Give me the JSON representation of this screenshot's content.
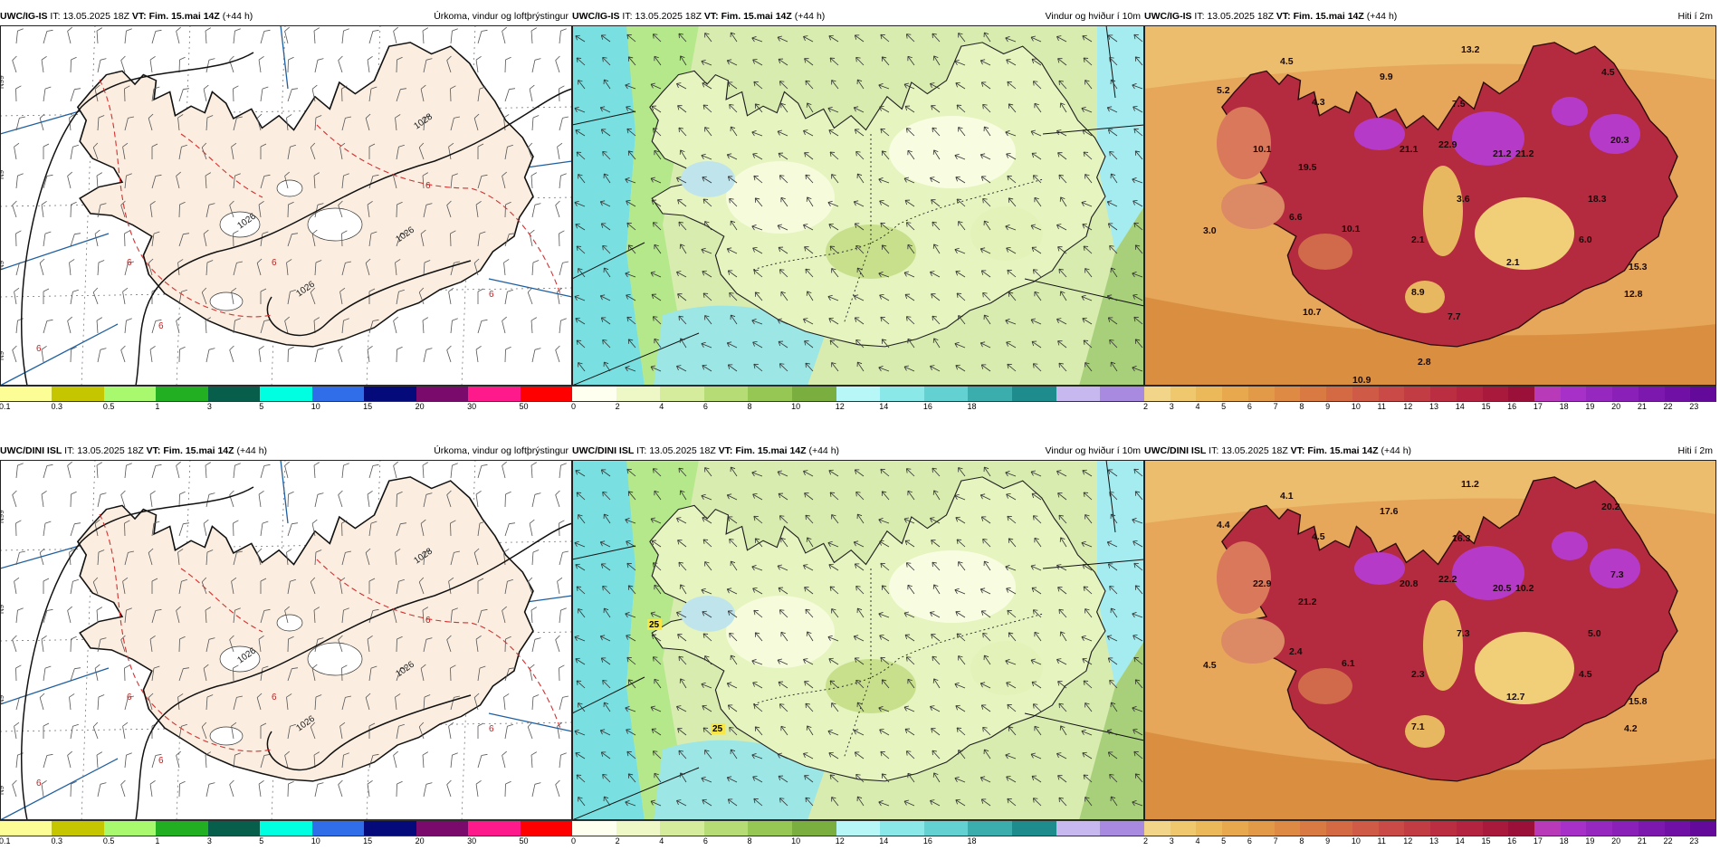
{
  "panels": [
    {
      "id": "p1",
      "model": "UWC/IG-IS",
      "it_label": "IT:",
      "it": "13.05.2025 18Z",
      "vt_label": "VT:",
      "vt": "Fim. 15.mai 14Z",
      "lead": "(+44 h)",
      "title": "Úrkoma, vindur og loftþrýstingur"
    },
    {
      "id": "p2",
      "model": "UWC/IG-IS",
      "it_label": "IT:",
      "it": "13.05.2025 18Z",
      "vt_label": "VT:",
      "vt": "Fim. 15.mai 14Z",
      "lead": "(+44 h)",
      "title": "Vindur og hviður í 10m"
    },
    {
      "id": "p3",
      "model": "UWC/IG-IS",
      "it_label": "IT:",
      "it": "13.05.2025 18Z",
      "vt_label": "VT:",
      "vt": "Fim. 15.mai 14Z",
      "lead": "(+44 h)",
      "title": "Hiti í 2m"
    },
    {
      "id": "p4",
      "model": "UWC/DINI ISL",
      "it_label": "IT:",
      "it": "13.05.2025 18Z",
      "vt_label": "VT:",
      "vt": "Fim. 15.mai 14Z",
      "lead": "(+44 h)",
      "title": "Úrkoma, vindur og loftþrýstingur"
    },
    {
      "id": "p5",
      "model": "UWC/DINI ISL",
      "it_label": "IT:",
      "it": "13.05.2025 18Z",
      "vt_label": "VT:",
      "vt": "Fim. 15.mai 14Z",
      "lead": "(+44 h)",
      "title": "Vindur og hviður í 10m"
    },
    {
      "id": "p6",
      "model": "UWC/DINI ISL",
      "it_label": "IT:",
      "it": "13.05.2025 18Z",
      "vt_label": "VT:",
      "vt": "Fim. 15.mai 14Z",
      "lead": "(+44 h)",
      "title": "Hiti í 2m"
    }
  ],
  "precip_scale": {
    "colors": [
      "#fdfd96",
      "#c6c600",
      "#a9f96f",
      "#22b022",
      "#075e4a",
      "#00ffe0",
      "#2f6ee8",
      "#040a7a",
      "#7a0a6b",
      "#ff1a8c",
      "#ff0000"
    ],
    "ticks": [
      "0.1",
      "0.3",
      "0.5",
      "1",
      "3",
      "5",
      "10",
      "15",
      "20",
      "30",
      "50"
    ]
  },
  "wind_scale": {
    "colors": [
      "#fffff0",
      "#eef7c6",
      "#d4ec9b",
      "#b6dc75",
      "#96c654",
      "#7aaf3f",
      "#b8f7f7",
      "#8ae8e8",
      "#63d1d1",
      "#3cadad",
      "#1e8c8c",
      "#c8b8f0",
      "#a88ae0"
    ],
    "ticks": [
      "0",
      "2",
      "4",
      "6",
      "8",
      "10",
      "12",
      "14",
      "16",
      "18"
    ]
  },
  "temp_scale": {
    "colors": [
      "#f3d58a",
      "#efc76c",
      "#ecb95a",
      "#e8a94e",
      "#e39a48",
      "#de8a44",
      "#d97a42",
      "#d46a44",
      "#cf5a46",
      "#c94a46",
      "#c23c44",
      "#bb2e42",
      "#b42440",
      "#a8193c",
      "#9a1038",
      "#b83ab8",
      "#a630c8",
      "#9628c0",
      "#8a20b8",
      "#7d18ae",
      "#7010a4",
      "#640a9a"
    ],
    "ticks": [
      "2",
      "3",
      "4",
      "5",
      "6",
      "7",
      "8",
      "9",
      "10",
      "11",
      "12",
      "13",
      "14",
      "15",
      "16",
      "17",
      "18",
      "19",
      "20",
      "21",
      "22",
      "23"
    ]
  },
  "pressure_labels": {
    "p1": [
      "1028",
      "1026",
      "1026",
      "1026"
    ],
    "p4": [
      "1028",
      "1026",
      "1026",
      "1026"
    ]
  },
  "precip_labels": {
    "p1": [
      "6",
      "6",
      "6",
      "6",
      "6",
      "6"
    ],
    "p4": [
      "6",
      "6",
      "6",
      "6",
      "6",
      "6"
    ]
  },
  "lat_labels": [
    "N99",
    "N9",
    "N9",
    "N9"
  ],
  "gust_labels": {
    "p5": [
      "25",
      "25"
    ]
  },
  "temp_labels": {
    "p3": [
      "13.2",
      "4.5",
      "5.2",
      "4.3",
      "9.9",
      "4.5",
      "7.5",
      "10.1",
      "21.1",
      "22.9",
      "21.2",
      "21.2",
      "20.3",
      "19.5",
      "3.6",
      "18.3",
      "6.6",
      "3.0",
      "10.1",
      "2.1",
      "6.0",
      "2.1",
      "15.3",
      "12.8",
      "8.9",
      "10.7",
      "7.7",
      "2.8",
      "10.9"
    ],
    "p6": [
      "11.2",
      "4.1",
      "4.4",
      "4.5",
      "17.6",
      "20.2",
      "16.3",
      "22.9",
      "20.8",
      "22.2",
      "20.5",
      "10.2",
      "7.3",
      "21.2",
      "7.3",
      "5.0",
      "2.4",
      "4.5",
      "6.1",
      "2.3",
      "4.5",
      "12.7",
      "15.8",
      "4.2",
      "7.1"
    ]
  }
}
